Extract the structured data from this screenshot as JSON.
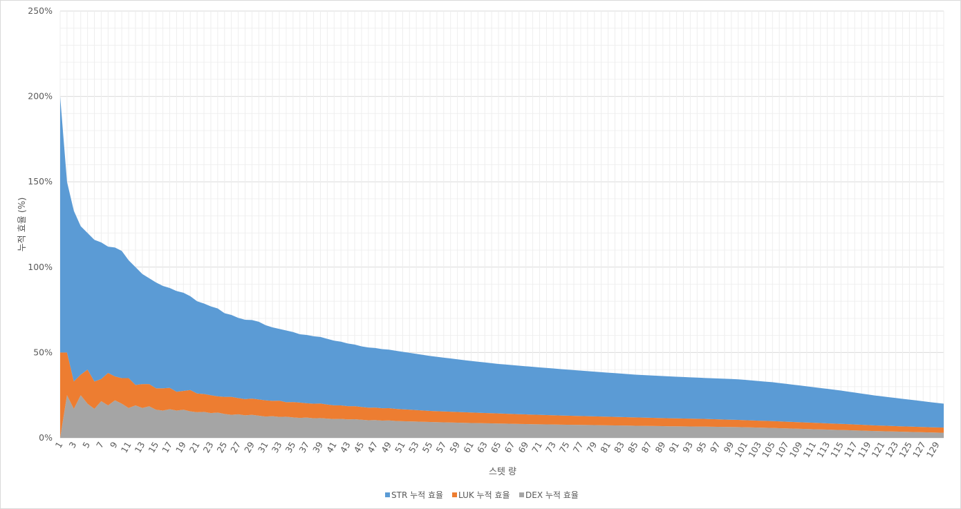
{
  "chart_data": {
    "type": "area",
    "stacked": true,
    "xlabel": "스텟 량",
    "ylabel": "누적 효율 (%)",
    "x_range": [
      1,
      130
    ],
    "x_tick_step": 2,
    "ylim": [
      0,
      250
    ],
    "y_ticks": [
      0,
      50,
      100,
      150,
      200,
      250
    ],
    "y_tick_labels": [
      "0%",
      "50%",
      "100%",
      "150%",
      "200%",
      "250%"
    ],
    "grid": true,
    "legend_position": "bottom",
    "series": [
      {
        "name": "DEX 누적 효율",
        "color": "#a5a5a5",
        "points": [
          [
            1,
            0
          ],
          [
            2,
            25
          ],
          [
            3,
            17
          ],
          [
            4,
            25
          ],
          [
            5,
            20
          ],
          [
            6,
            17
          ],
          [
            7,
            21.5
          ],
          [
            8,
            19
          ],
          [
            9,
            22
          ],
          [
            10,
            20
          ],
          [
            11,
            17.5
          ],
          [
            12,
            19
          ],
          [
            13,
            17.5
          ],
          [
            14,
            18.5
          ],
          [
            15,
            16.5
          ],
          [
            16,
            16
          ],
          [
            17,
            16.8
          ],
          [
            18,
            16
          ],
          [
            19,
            16.5
          ],
          [
            20,
            15.5
          ],
          [
            21,
            15
          ],
          [
            22,
            15.2
          ],
          [
            23,
            14.5
          ],
          [
            24,
            14.8
          ],
          [
            25,
            14
          ],
          [
            26,
            13.5
          ],
          [
            27,
            13.8
          ],
          [
            28,
            13.2
          ],
          [
            29,
            13.5
          ],
          [
            30,
            13
          ],
          [
            31,
            12.5
          ],
          [
            32,
            12.7
          ],
          [
            33,
            12.3
          ],
          [
            34,
            12.4
          ],
          [
            35,
            12
          ],
          [
            36,
            11.7
          ],
          [
            37,
            11.9
          ],
          [
            38,
            11.5
          ],
          [
            39,
            11.6
          ],
          [
            40,
            11.3
          ],
          [
            41,
            11
          ],
          [
            42,
            11.1
          ],
          [
            43,
            10.8
          ],
          [
            44,
            10.9
          ],
          [
            45,
            10.6
          ],
          [
            46,
            10.3
          ],
          [
            47,
            10.4
          ],
          [
            48,
            10.1
          ],
          [
            49,
            10.2
          ],
          [
            50,
            9.9
          ],
          [
            55,
            9.3
          ],
          [
            60,
            8.8
          ],
          [
            65,
            8.4
          ],
          [
            70,
            8
          ],
          [
            75,
            7.7
          ],
          [
            80,
            7.4
          ],
          [
            85,
            7.1
          ],
          [
            90,
            6.8
          ],
          [
            95,
            6.6
          ],
          [
            100,
            6.3
          ],
          [
            105,
            5.8
          ],
          [
            110,
            5.2
          ],
          [
            115,
            4.6
          ],
          [
            120,
            4
          ],
          [
            125,
            3.5
          ],
          [
            130,
            3
          ]
        ]
      },
      {
        "name": "LUK 누적 효율",
        "color": "#ed7d31",
        "points": [
          [
            1,
            50
          ],
          [
            2,
            25
          ],
          [
            3,
            16
          ],
          [
            4,
            12
          ],
          [
            5,
            20
          ],
          [
            6,
            16
          ],
          [
            7,
            13
          ],
          [
            8,
            19
          ],
          [
            9,
            14
          ],
          [
            10,
            15
          ],
          [
            11,
            17.5
          ],
          [
            12,
            12
          ],
          [
            13,
            14
          ],
          [
            14,
            13
          ],
          [
            15,
            12.5
          ],
          [
            16,
            13
          ],
          [
            17,
            12.5
          ],
          [
            18,
            11
          ],
          [
            19,
            11
          ],
          [
            20,
            12.5
          ],
          [
            21,
            11
          ],
          [
            22,
            10.5
          ],
          [
            23,
            10.5
          ],
          [
            24,
            9.5
          ],
          [
            25,
            10
          ],
          [
            26,
            10.5
          ],
          [
            27,
            9.5
          ],
          [
            28,
            9.5
          ],
          [
            29,
            9.5
          ],
          [
            30,
            9.5
          ],
          [
            31,
            9.5
          ],
          [
            32,
            9
          ],
          [
            33,
            9.5
          ],
          [
            34,
            8.5
          ],
          [
            35,
            9
          ],
          [
            36,
            9
          ],
          [
            37,
            8.4
          ],
          [
            38,
            8.5
          ],
          [
            39,
            8.5
          ],
          [
            40,
            8.2
          ],
          [
            45,
            7.5
          ],
          [
            50,
            7.1
          ],
          [
            55,
            6.5
          ],
          [
            60,
            6.2
          ],
          [
            65,
            5.9
          ],
          [
            70,
            5.6
          ],
          [
            75,
            5.3
          ],
          [
            80,
            5.1
          ],
          [
            85,
            4.9
          ],
          [
            90,
            4.7
          ],
          [
            95,
            4.5
          ],
          [
            100,
            4.2
          ],
          [
            105,
            4
          ],
          [
            110,
            3.8
          ],
          [
            115,
            3.6
          ],
          [
            120,
            3.3
          ],
          [
            125,
            3.1
          ],
          [
            130,
            3
          ]
        ]
      },
      {
        "name": "STR 누적 효율",
        "color": "#5b9bd5",
        "points": [
          [
            1,
            150
          ],
          [
            2,
            100
          ],
          [
            3,
            100
          ],
          [
            4,
            87
          ],
          [
            5,
            80
          ],
          [
            6,
            83
          ],
          [
            7,
            80
          ],
          [
            8,
            74
          ],
          [
            9,
            75.5
          ],
          [
            10,
            74.5
          ],
          [
            11,
            69
          ],
          [
            12,
            69
          ],
          [
            13,
            64.5
          ],
          [
            14,
            62
          ],
          [
            15,
            62
          ],
          [
            16,
            60
          ],
          [
            17,
            58.5
          ],
          [
            18,
            59
          ],
          [
            19,
            57.5
          ],
          [
            20,
            55
          ],
          [
            21,
            54
          ],
          [
            22,
            53
          ],
          [
            23,
            52
          ],
          [
            24,
            51.5
          ],
          [
            25,
            49
          ],
          [
            26,
            48
          ],
          [
            27,
            47
          ],
          [
            28,
            46.5
          ],
          [
            29,
            46
          ],
          [
            30,
            45.5
          ],
          [
            31,
            44
          ],
          [
            32,
            43
          ],
          [
            33,
            42
          ],
          [
            34,
            42
          ],
          [
            35,
            41
          ],
          [
            36,
            40
          ],
          [
            37,
            40
          ],
          [
            38,
            39.5
          ],
          [
            39,
            39
          ],
          [
            40,
            38.5
          ],
          [
            45,
            35.5
          ],
          [
            50,
            34
          ],
          [
            55,
            32.2
          ],
          [
            60,
            30.5
          ],
          [
            65,
            29
          ],
          [
            70,
            28
          ],
          [
            75,
            27
          ],
          [
            80,
            26
          ],
          [
            85,
            25
          ],
          [
            90,
            24.5
          ],
          [
            95,
            24
          ],
          [
            100,
            23.8
          ],
          [
            105,
            22.8
          ],
          [
            110,
            21.2
          ],
          [
            115,
            19.5
          ],
          [
            120,
            17.5
          ],
          [
            125,
            15.8
          ],
          [
            130,
            14
          ]
        ]
      }
    ]
  }
}
